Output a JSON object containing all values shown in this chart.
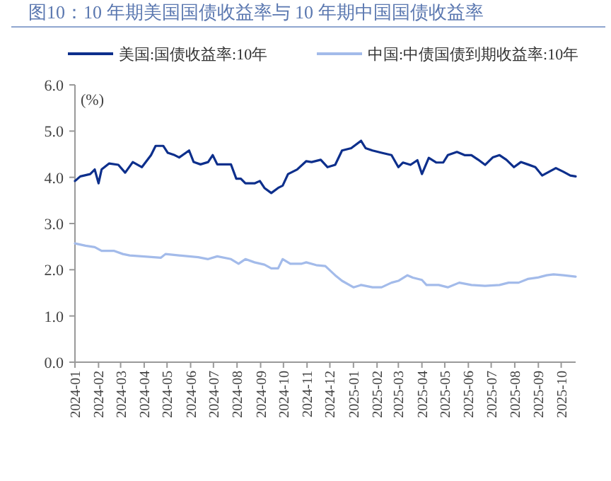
{
  "chart_data": {
    "type": "line",
    "title": "图10：10 年期美国国债收益率与 10 年期中国国债收益率",
    "ylabel": "(%)",
    "xlim": [
      "2024-01-01",
      "2025-10-20"
    ],
    "xticks": [
      "2024-01",
      "2024-02",
      "2024-03",
      "2024-04",
      "2024-05",
      "2024-06",
      "2024-07",
      "2024-08",
      "2024-09",
      "2024-10",
      "2024-11",
      "2024-12",
      "2025-01",
      "2025-02",
      "2025-03",
      "2025-04",
      "2025-05",
      "2025-06",
      "2025-07",
      "2025-08",
      "2025-09",
      "2025-10"
    ],
    "ylim": [
      0,
      6
    ],
    "yticks": [
      {
        "value": 0,
        "label": "0.0"
      },
      {
        "value": 1,
        "label": "1.0"
      },
      {
        "value": 2,
        "label": "2.0"
      },
      {
        "value": 3,
        "label": "3.0"
      },
      {
        "value": 4,
        "label": "4.0"
      },
      {
        "value": 5,
        "label": "5.0"
      },
      {
        "value": 6,
        "label": "6.0"
      }
    ],
    "grid": false,
    "legend": "top",
    "series": [
      {
        "name": "美国:国债收益率:10年",
        "color": "#0d2f8c",
        "x": [
          "2024-01-01",
          "2024-01-08",
          "2024-01-21",
          "2024-01-27",
          "2024-02-01",
          "2024-02-05",
          "2024-02-15",
          "2024-02-27",
          "2024-03-07",
          "2024-03-17",
          "2024-03-29",
          "2024-04-10",
          "2024-04-16",
          "2024-04-26",
          "2024-05-02",
          "2024-05-11",
          "2024-05-17",
          "2024-05-30",
          "2024-06-05",
          "2024-06-14",
          "2024-06-24",
          "2024-06-30",
          "2024-07-06",
          "2024-07-15",
          "2024-07-24",
          "2024-07-31",
          "2024-08-06",
          "2024-08-12",
          "2024-08-24",
          "2024-08-31",
          "2024-09-06",
          "2024-09-15",
          "2024-09-24",
          "2024-09-30",
          "2024-10-07",
          "2024-10-19",
          "2024-10-31",
          "2024-11-07",
          "2024-11-19",
          "2024-11-28",
          "2024-12-08",
          "2024-12-17",
          "2024-12-29",
          "2025-01-11",
          "2025-01-17",
          "2025-01-26",
          "2025-02-07",
          "2025-02-20",
          "2025-03-01",
          "2025-03-07",
          "2025-03-17",
          "2025-03-26",
          "2025-04-01",
          "2025-04-10",
          "2025-04-20",
          "2025-04-29",
          "2025-05-05",
          "2025-05-17",
          "2025-05-27",
          "2025-06-05",
          "2025-06-14",
          "2025-06-23",
          "2025-07-03",
          "2025-07-12",
          "2025-07-21",
          "2025-07-31",
          "2025-08-09",
          "2025-08-18",
          "2025-08-28",
          "2025-09-06",
          "2025-09-15",
          "2025-09-24",
          "2025-10-04",
          "2025-10-13",
          "2025-10-20"
        ],
        "values": [
          3.92,
          4.02,
          4.07,
          4.17,
          3.87,
          4.17,
          4.3,
          4.27,
          4.1,
          4.33,
          4.22,
          4.48,
          4.68,
          4.68,
          4.53,
          4.48,
          4.43,
          4.58,
          4.33,
          4.28,
          4.33,
          4.48,
          4.28,
          4.28,
          4.28,
          3.97,
          3.97,
          3.87,
          3.87,
          3.92,
          3.77,
          3.66,
          3.77,
          3.82,
          4.07,
          4.17,
          4.35,
          4.33,
          4.38,
          4.22,
          4.27,
          4.58,
          4.63,
          4.79,
          4.63,
          4.58,
          4.53,
          4.48,
          4.22,
          4.32,
          4.27,
          4.37,
          4.07,
          4.42,
          4.32,
          4.32,
          4.48,
          4.55,
          4.48,
          4.48,
          4.38,
          4.27,
          4.43,
          4.48,
          4.38,
          4.22,
          4.33,
          4.28,
          4.22,
          4.04,
          4.12,
          4.2,
          4.12,
          4.04,
          4.02
        ]
      },
      {
        "name": "中国:中债国债到期收益率:10年",
        "color": "#a3bbea",
        "x": [
          "2024-01-01",
          "2024-01-15",
          "2024-01-27",
          "2024-02-05",
          "2024-02-21",
          "2024-03-04",
          "2024-03-13",
          "2024-03-29",
          "2024-04-23",
          "2024-04-29",
          "2024-05-17",
          "2024-06-11",
          "2024-06-24",
          "2024-07-06",
          "2024-07-24",
          "2024-08-03",
          "2024-08-12",
          "2024-08-24",
          "2024-09-06",
          "2024-09-15",
          "2024-09-24",
          "2024-09-30",
          "2024-10-10",
          "2024-10-25",
          "2024-10-31",
          "2024-11-13",
          "2024-11-25",
          "2024-12-08",
          "2024-12-17",
          "2025-01-01",
          "2025-01-11",
          "2025-01-26",
          "2025-02-07",
          "2025-02-20",
          "2025-03-01",
          "2025-03-13",
          "2025-03-20",
          "2025-04-01",
          "2025-04-07",
          "2025-04-23",
          "2025-05-05",
          "2025-05-20",
          "2025-06-05",
          "2025-06-23",
          "2025-07-12",
          "2025-07-24",
          "2025-08-06",
          "2025-08-18",
          "2025-08-31",
          "2025-09-12",
          "2025-09-21",
          "2025-10-04",
          "2025-10-20"
        ],
        "values": [
          2.57,
          2.52,
          2.49,
          2.41,
          2.41,
          2.34,
          2.31,
          2.29,
          2.26,
          2.34,
          2.31,
          2.27,
          2.23,
          2.29,
          2.23,
          2.13,
          2.23,
          2.16,
          2.11,
          2.03,
          2.03,
          2.23,
          2.13,
          2.13,
          2.16,
          2.1,
          2.08,
          1.88,
          1.76,
          1.62,
          1.67,
          1.62,
          1.62,
          1.72,
          1.76,
          1.88,
          1.83,
          1.78,
          1.67,
          1.67,
          1.62,
          1.72,
          1.67,
          1.65,
          1.67,
          1.72,
          1.72,
          1.8,
          1.83,
          1.88,
          1.9,
          1.88,
          1.85
        ]
      }
    ]
  }
}
